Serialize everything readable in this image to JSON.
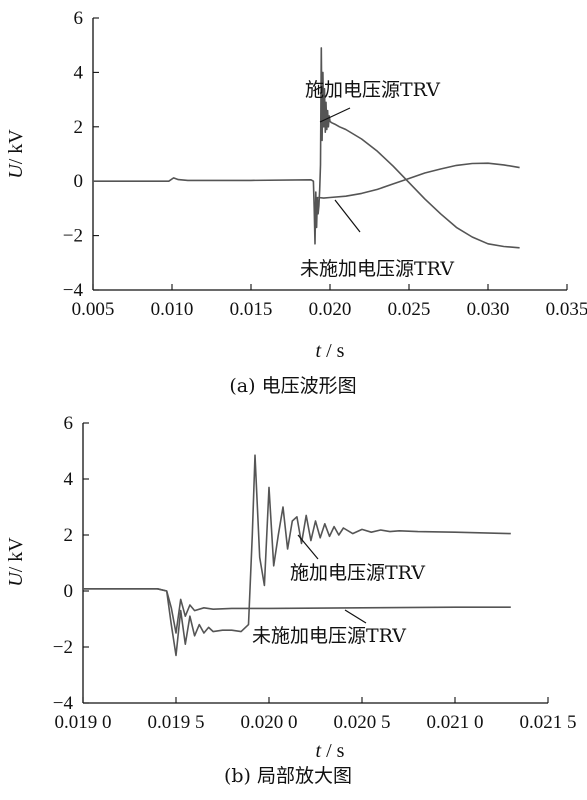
{
  "chart_data": [
    {
      "type": "line",
      "caption": "(a)  电压波形图",
      "xlabel_var": "t",
      "xlabel_unit": " / s",
      "ylabel_var": "U",
      "ylabel_unit": "/ kV",
      "xlim": [
        0.005,
        0.035
      ],
      "ylim": [
        -4,
        6
      ],
      "x_ticks": [
        0.005,
        0.01,
        0.015,
        0.02,
        0.025,
        0.03,
        0.035
      ],
      "x_tick_labels": [
        "0.005",
        "0.010",
        "0.015",
        "0.020",
        "0.025",
        "0.030",
        "0.035"
      ],
      "y_ticks": [
        -4,
        -2,
        0,
        2,
        4,
        6
      ],
      "y_tick_labels": [
        "−4",
        "−2",
        "0",
        "2",
        "4",
        "6"
      ],
      "grid": false,
      "series": [
        {
          "name": "施加电压源TRV",
          "color": "#555555",
          "x": [
            0.005,
            0.0098,
            0.0101,
            0.0104,
            0.011,
            0.015,
            0.0188,
            0.01895,
            0.019,
            0.01905,
            0.0191,
            0.01915,
            0.0192,
            0.01925,
            0.0193,
            0.01935,
            0.0194,
            0.01945,
            0.0195,
            0.01955,
            0.0196,
            0.01965,
            0.0197,
            0.01975,
            0.0198,
            0.01985,
            0.0199,
            0.01995,
            0.02,
            0.0201,
            0.0203,
            0.0206,
            0.021,
            0.022,
            0.023,
            0.024,
            0.025,
            0.026,
            0.027,
            0.028,
            0.029,
            0.03,
            0.031,
            0.032
          ],
          "y": [
            0.0,
            0.0,
            0.12,
            0.06,
            0.03,
            0.03,
            0.05,
            0.0,
            -1.0,
            -2.3,
            -0.4,
            -1.7,
            -0.6,
            -1.2,
            -0.9,
            -0.3,
            0.6,
            4.9,
            1.5,
            4.0,
            2.0,
            3.4,
            1.8,
            2.9,
            1.9,
            2.6,
            2.0,
            2.4,
            2.2,
            2.15,
            2.1,
            2.0,
            1.9,
            1.55,
            1.1,
            0.55,
            -0.05,
            -0.65,
            -1.2,
            -1.7,
            -2.05,
            -2.3,
            -2.4,
            -2.45
          ]
        },
        {
          "name": "未施加电压源TRV",
          "color": "#555555",
          "x": [
            0.01925,
            0.0196,
            0.02,
            0.021,
            0.022,
            0.023,
            0.024,
            0.025,
            0.026,
            0.027,
            0.028,
            0.029,
            0.03,
            0.031,
            0.032
          ],
          "y": [
            -0.6,
            -0.62,
            -0.6,
            -0.55,
            -0.45,
            -0.3,
            -0.1,
            0.1,
            0.3,
            0.45,
            0.58,
            0.65,
            0.66,
            0.6,
            0.5
          ]
        }
      ]
    },
    {
      "type": "line",
      "caption": "(b)  局部放大图",
      "xlabel_var": "t",
      "xlabel_unit": " / s",
      "ylabel_var": "U",
      "ylabel_unit": "/ kV",
      "xlim": [
        0.019,
        0.0215
      ],
      "ylim": [
        -4,
        6
      ],
      "x_ticks": [
        0.019,
        0.0195,
        0.02,
        0.0205,
        0.021,
        0.0215
      ],
      "x_tick_labels": [
        "0.019 0",
        "0.019 5",
        "0.020 0",
        "0.020 5",
        "0.021 0",
        "0.021 5"
      ],
      "y_ticks": [
        -4,
        -2,
        0,
        2,
        4,
        6
      ],
      "y_tick_labels": [
        "−4",
        "−2",
        "0",
        "2",
        "4",
        "6"
      ],
      "grid": false,
      "series": [
        {
          "name": "施加电压源TRV",
          "color": "#555555",
          "x": [
            0.019,
            0.0194,
            0.01945,
            0.019475,
            0.0195,
            0.019525,
            0.01955,
            0.019575,
            0.0196,
            0.019625,
            0.01965,
            0.019675,
            0.0197,
            0.01975,
            0.0198,
            0.01985,
            0.01989,
            0.01991,
            0.019925,
            0.01995,
            0.019975,
            0.02,
            0.020025,
            0.02005,
            0.020075,
            0.0201,
            0.020125,
            0.02015,
            0.020175,
            0.0202,
            0.020225,
            0.02025,
            0.020275,
            0.0203,
            0.020325,
            0.02035,
            0.020375,
            0.0204,
            0.02045,
            0.0205,
            0.02055,
            0.0206,
            0.02065,
            0.0207,
            0.0208,
            0.021,
            0.0213
          ],
          "y": [
            0.08,
            0.08,
            0.0,
            -1.2,
            -2.3,
            -0.7,
            -1.9,
            -0.9,
            -1.6,
            -1.2,
            -1.5,
            -1.3,
            -1.45,
            -1.4,
            -1.4,
            -1.45,
            -1.2,
            2.0,
            4.85,
            1.2,
            0.2,
            3.7,
            0.9,
            2.0,
            3.0,
            1.5,
            2.5,
            2.65,
            1.7,
            2.7,
            1.8,
            2.5,
            1.9,
            2.4,
            1.95,
            2.3,
            2.0,
            2.25,
            2.05,
            2.2,
            2.1,
            2.18,
            2.12,
            2.15,
            2.12,
            2.1,
            2.05
          ]
        },
        {
          "name": "未施加电压源TRV",
          "color": "#555555",
          "x": [
            0.019,
            0.0194,
            0.01945,
            0.019475,
            0.0195,
            0.019525,
            0.01955,
            0.019575,
            0.0196,
            0.01965,
            0.0197,
            0.0198,
            0.02,
            0.0205,
            0.021,
            0.0213
          ],
          "y": [
            0.08,
            0.08,
            0.0,
            -0.6,
            -1.5,
            -0.3,
            -0.9,
            -0.5,
            -0.7,
            -0.6,
            -0.65,
            -0.62,
            -0.62,
            -0.6,
            -0.58,
            -0.58
          ]
        }
      ]
    }
  ],
  "annotations": [
    {
      "chart": 0,
      "label": "施加电压源TRV"
    },
    {
      "chart": 0,
      "label": "未施加电压源TRV"
    },
    {
      "chart": 1,
      "label": "施加电压源TRV"
    },
    {
      "chart": 1,
      "label": "未施加电压源TRV"
    }
  ]
}
